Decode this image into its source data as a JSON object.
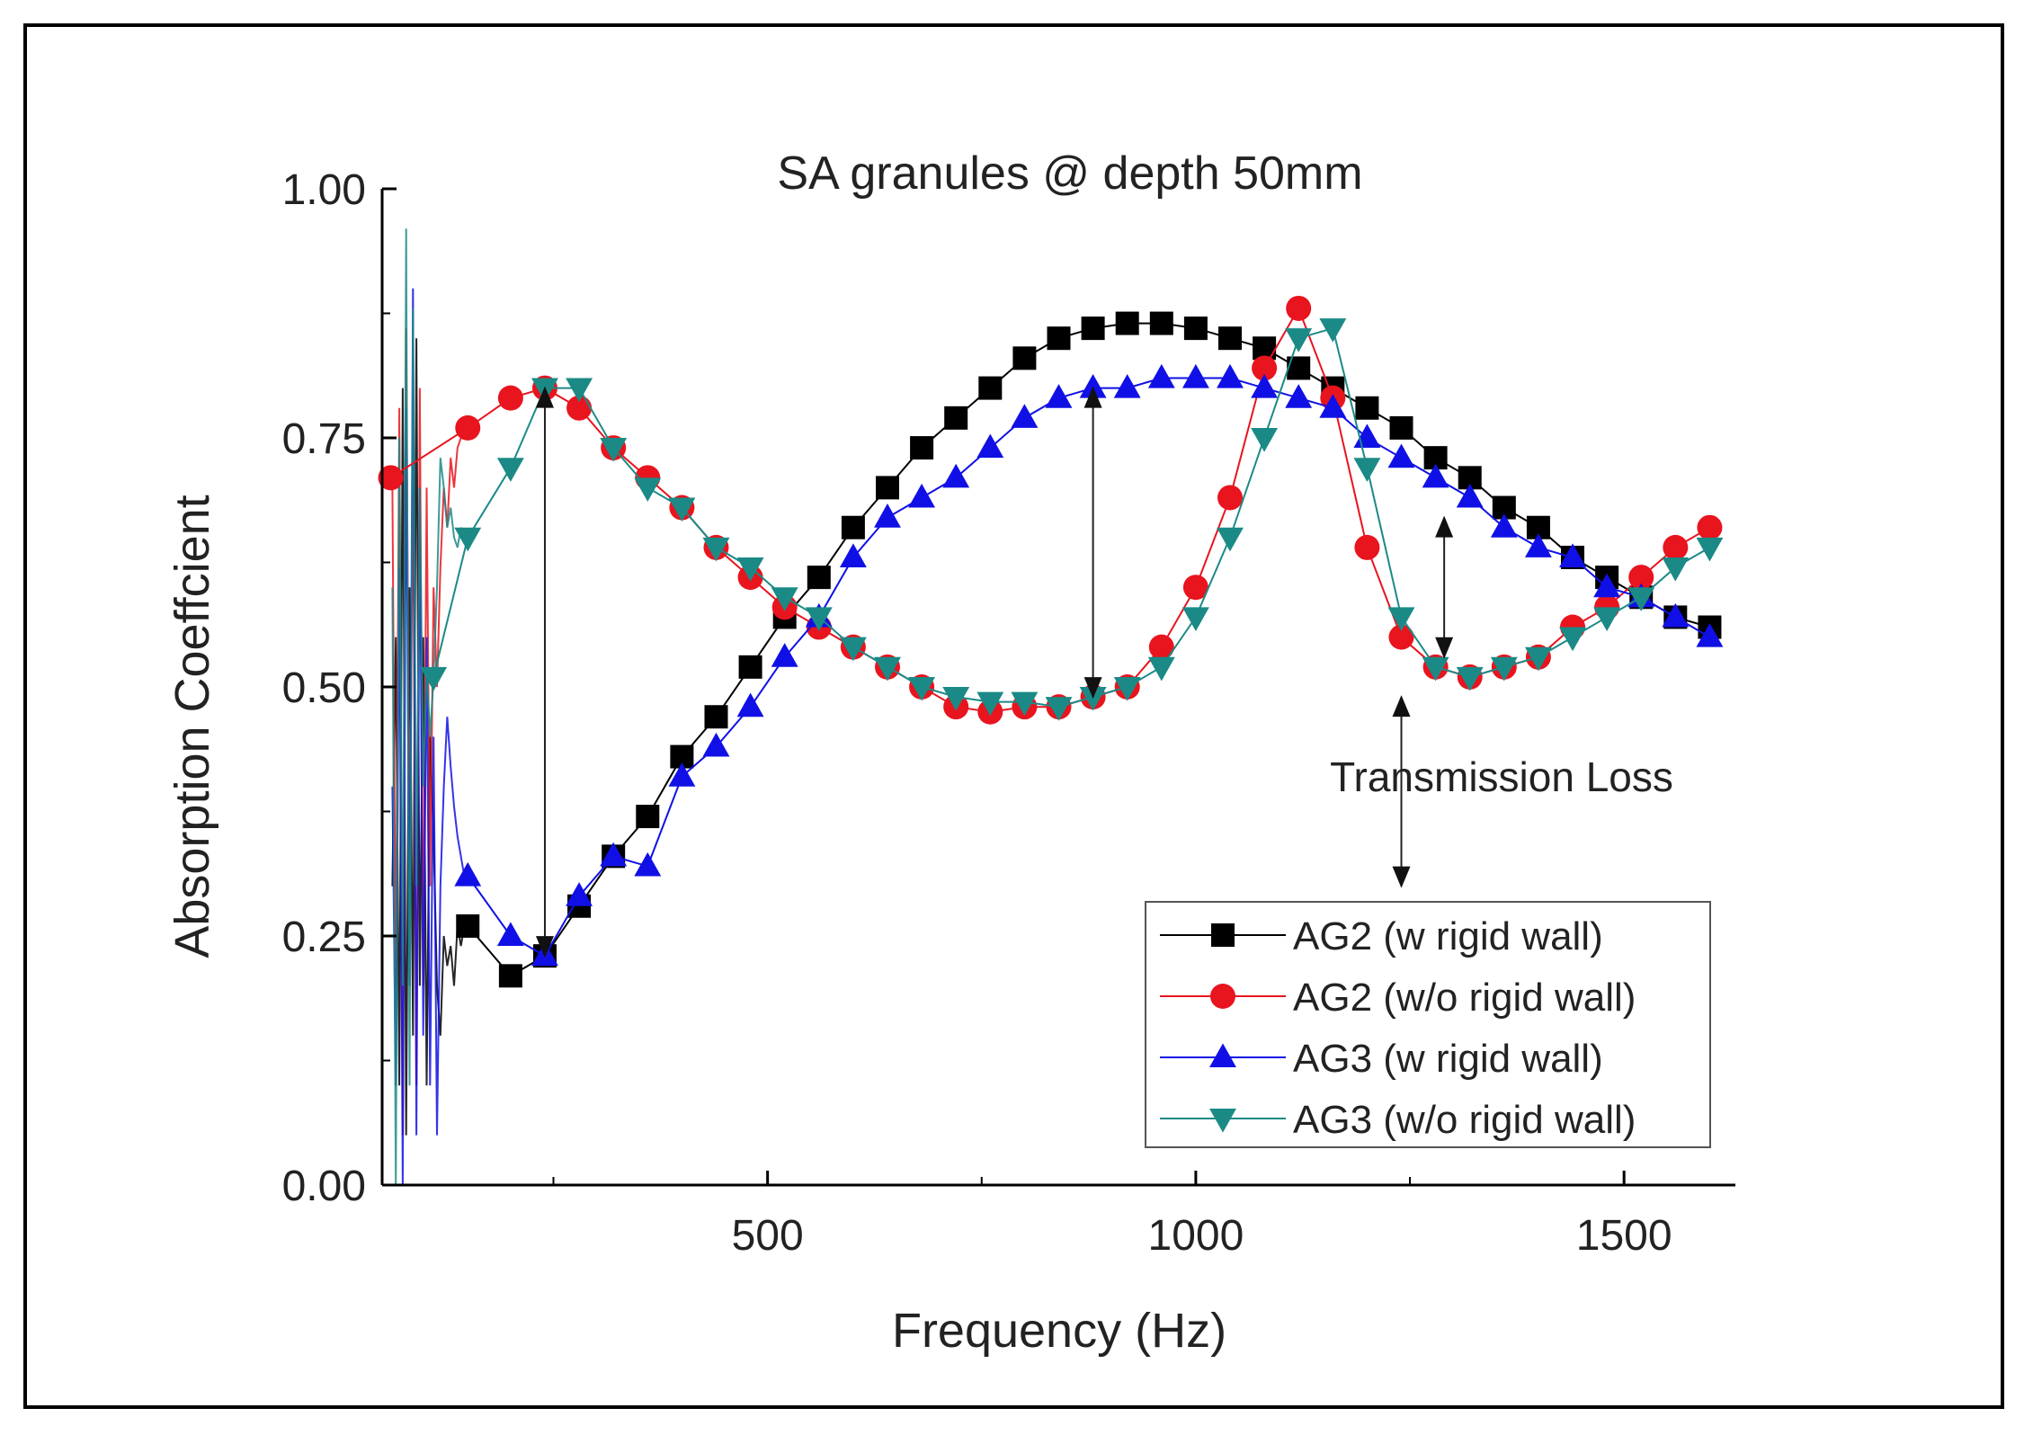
{
  "chart_data": {
    "type": "line",
    "title": "SA granules @ depth 50mm",
    "xlabel": "Frequency (Hz)",
    "ylabel": "Absorption Coeffcient",
    "xlim": [
      50,
      1630
    ],
    "ylim": [
      0,
      1.0
    ],
    "xticks": [
      500,
      1000,
      1500
    ],
    "xtick_labels": [
      "500",
      "1000",
      "1500"
    ],
    "yticks": [
      0,
      0.25,
      0.5,
      0.75,
      1.0
    ],
    "ytick_labels": [
      "0.00",
      "0.25",
      "0.50",
      "0.75",
      "1.00"
    ],
    "legend_position": "bottom-right",
    "annotations": [
      {
        "text": "Transmission Loss",
        "x": 1135,
        "y": 0.41
      }
    ],
    "series": [
      {
        "name": "AG2 (w rigid wall)",
        "color": "#000000",
        "marker": "square",
        "x": [
          150,
          200,
          240,
          280,
          320,
          360,
          400,
          440,
          480,
          520,
          560,
          600,
          640,
          680,
          720,
          760,
          800,
          840,
          880,
          920,
          960,
          1000,
          1040,
          1080,
          1120,
          1160,
          1200,
          1240,
          1280,
          1320,
          1360,
          1400,
          1440,
          1480,
          1520,
          1560,
          1600
        ],
        "values": [
          0.26,
          0.21,
          0.23,
          0.28,
          0.33,
          0.37,
          0.43,
          0.47,
          0.52,
          0.57,
          0.61,
          0.66,
          0.7,
          0.74,
          0.77,
          0.8,
          0.83,
          0.85,
          0.86,
          0.865,
          0.865,
          0.86,
          0.85,
          0.84,
          0.82,
          0.8,
          0.78,
          0.76,
          0.73,
          0.71,
          0.68,
          0.66,
          0.63,
          0.61,
          0.59,
          0.57,
          0.56
        ]
      },
      {
        "name": "AG2 (w/o rigid wall)",
        "color": "#e8141e",
        "marker": "circle",
        "x": [
          60,
          150,
          200,
          240,
          280,
          320,
          360,
          400,
          440,
          480,
          520,
          560,
          600,
          640,
          680,
          720,
          760,
          800,
          840,
          880,
          920,
          960,
          1000,
          1040,
          1080,
          1120,
          1160,
          1200,
          1240,
          1280,
          1320,
          1360,
          1400,
          1440,
          1480,
          1520,
          1560,
          1600
        ],
        "values": [
          0.71,
          0.76,
          0.79,
          0.8,
          0.78,
          0.74,
          0.71,
          0.68,
          0.64,
          0.61,
          0.58,
          0.56,
          0.54,
          0.52,
          0.5,
          0.48,
          0.475,
          0.48,
          0.48,
          0.49,
          0.5,
          0.54,
          0.6,
          0.69,
          0.82,
          0.88,
          0.79,
          0.64,
          0.55,
          0.52,
          0.51,
          0.52,
          0.53,
          0.56,
          0.58,
          0.61,
          0.64,
          0.66
        ]
      },
      {
        "name": "AG3 (w rigid wall)",
        "color": "#1010e6",
        "marker": "triangle-up",
        "x": [
          150,
          200,
          240,
          280,
          320,
          360,
          400,
          440,
          480,
          520,
          560,
          600,
          640,
          680,
          720,
          760,
          800,
          840,
          880,
          920,
          960,
          1000,
          1040,
          1080,
          1120,
          1160,
          1200,
          1240,
          1280,
          1320,
          1360,
          1400,
          1440,
          1480,
          1520,
          1560,
          1600
        ],
        "values": [
          0.31,
          0.25,
          0.23,
          0.29,
          0.33,
          0.32,
          0.41,
          0.44,
          0.48,
          0.53,
          0.57,
          0.63,
          0.67,
          0.69,
          0.71,
          0.74,
          0.77,
          0.79,
          0.8,
          0.8,
          0.81,
          0.81,
          0.81,
          0.8,
          0.79,
          0.78,
          0.75,
          0.73,
          0.71,
          0.69,
          0.66,
          0.64,
          0.63,
          0.6,
          0.59,
          0.57,
          0.55
        ]
      },
      {
        "name": "AG3 (w/o rigid wall)",
        "color": "#1b8a86",
        "marker": "triangle-down",
        "x": [
          110,
          150,
          200,
          240,
          280,
          320,
          360,
          400,
          440,
          480,
          520,
          560,
          600,
          640,
          680,
          720,
          760,
          800,
          840,
          880,
          920,
          960,
          1000,
          1040,
          1080,
          1120,
          1160,
          1200,
          1240,
          1280,
          1320,
          1360,
          1400,
          1440,
          1480,
          1520,
          1560,
          1600
        ],
        "values": [
          0.51,
          0.65,
          0.72,
          0.8,
          0.8,
          0.74,
          0.7,
          0.68,
          0.64,
          0.62,
          0.59,
          0.57,
          0.54,
          0.52,
          0.5,
          0.49,
          0.485,
          0.485,
          0.48,
          0.49,
          0.5,
          0.52,
          0.57,
          0.65,
          0.75,
          0.85,
          0.86,
          0.72,
          0.57,
          0.52,
          0.51,
          0.52,
          0.53,
          0.55,
          0.57,
          0.59,
          0.62,
          0.64
        ]
      }
    ],
    "low_frequency_noise": {
      "series_colors": [
        "#000000",
        "#e8141e",
        "#1010e6",
        "#1b8a86"
      ],
      "x": [
        62,
        66,
        70,
        74,
        78,
        82,
        86,
        90,
        94,
        98,
        102,
        106,
        110,
        114,
        118,
        122,
        126,
        130,
        134,
        138,
        142,
        146
      ],
      "values_by_series": [
        [
          0.3,
          0.55,
          0.1,
          0.8,
          0.05,
          0.6,
          0.15,
          0.85,
          0.2,
          0.55,
          0.1,
          0.45,
          0.35,
          0.2,
          0.15,
          0.25,
          0.22,
          0.24,
          0.2,
          0.26,
          0.24,
          0.26
        ],
        [
          0.7,
          0.2,
          0.78,
          0.05,
          0.86,
          0.3,
          0.72,
          0.1,
          0.8,
          0.2,
          0.7,
          0.3,
          0.6,
          0.5,
          0.62,
          0.7,
          0.66,
          0.73,
          0.7,
          0.74,
          0.75,
          0.76
        ],
        [
          0.4,
          0.1,
          0.62,
          0.0,
          0.78,
          0.2,
          0.9,
          0.05,
          0.7,
          0.15,
          0.55,
          0.1,
          0.45,
          0.05,
          0.3,
          0.4,
          0.47,
          0.42,
          0.38,
          0.35,
          0.33,
          0.31
        ],
        [
          0.6,
          0.0,
          0.75,
          0.2,
          0.96,
          0.1,
          0.88,
          0.3,
          0.7,
          0.4,
          0.52,
          0.45,
          0.51,
          0.6,
          0.73,
          0.7,
          0.66,
          0.68,
          0.65,
          0.64,
          0.66,
          0.65
        ]
      ]
    }
  }
}
